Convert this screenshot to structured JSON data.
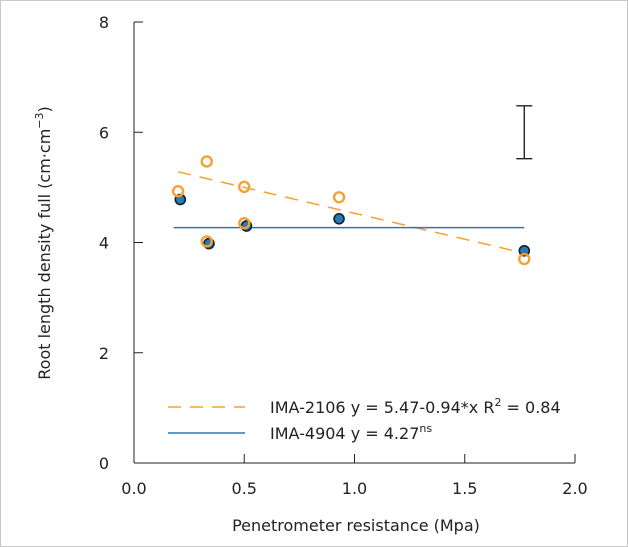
{
  "chart_data": {
    "type": "scatter",
    "xlabel": "Penetrometer resistance (Mpa)",
    "ylabel_main": "Root length density full (cm·cm",
    "ylabel_sup": "−3",
    "ylabel_close": ")",
    "xlim": [
      0.0,
      2.0
    ],
    "ylim": [
      0,
      8
    ],
    "x_ticks": [
      0.0,
      0.5,
      1.0,
      1.5,
      2.0
    ],
    "x_tick_labels": [
      "0.0",
      "0.5",
      "1.0",
      "1.5",
      "2.0"
    ],
    "y_ticks": [
      0,
      2,
      4,
      6,
      8
    ],
    "y_tick_labels": [
      "0",
      "2",
      "4",
      "6",
      "8"
    ],
    "grid": false,
    "legend_position": "bottom-right",
    "error_bar": {
      "x": 1.77,
      "y_low": 5.52,
      "y_high": 6.48
    },
    "series": [
      {
        "name": "IMA-2106",
        "marker": "open-circle",
        "color": "#f5a030",
        "points": [
          {
            "x": 0.2,
            "y": 4.93
          },
          {
            "x": 0.33,
            "y": 5.47
          },
          {
            "x": 0.33,
            "y": 4.02
          },
          {
            "x": 0.5,
            "y": 5.01
          },
          {
            "x": 0.5,
            "y": 4.35
          },
          {
            "x": 0.93,
            "y": 4.82
          },
          {
            "x": 1.77,
            "y": 3.7
          }
        ],
        "fit": {
          "intercept": 5.47,
          "slope": -0.94,
          "x_range": [
            0.2,
            1.77
          ],
          "style": "dashed"
        },
        "legend_label": "IMA-2106 y = 5.47-0.94*x   R",
        "legend_sup": "2",
        "legend_tail": " = 0.84"
      },
      {
        "name": "IMA-4904",
        "marker": "filled-circle",
        "color": "#2b78b3",
        "points": [
          {
            "x": 0.21,
            "y": 4.78
          },
          {
            "x": 0.34,
            "y": 3.98
          },
          {
            "x": 0.51,
            "y": 4.3
          },
          {
            "x": 0.93,
            "y": 4.43
          },
          {
            "x": 1.77,
            "y": 3.85
          }
        ],
        "fit": {
          "intercept": 4.27,
          "slope": 0.0,
          "x_range": [
            0.18,
            1.77
          ],
          "style": "solid"
        },
        "legend_label": "IMA-4904 y = 4.27",
        "legend_sup": "ns",
        "legend_tail": ""
      }
    ]
  },
  "colors": {
    "orange": "#f5a030",
    "blue": "#2b78b3",
    "axis": "#222222"
  }
}
